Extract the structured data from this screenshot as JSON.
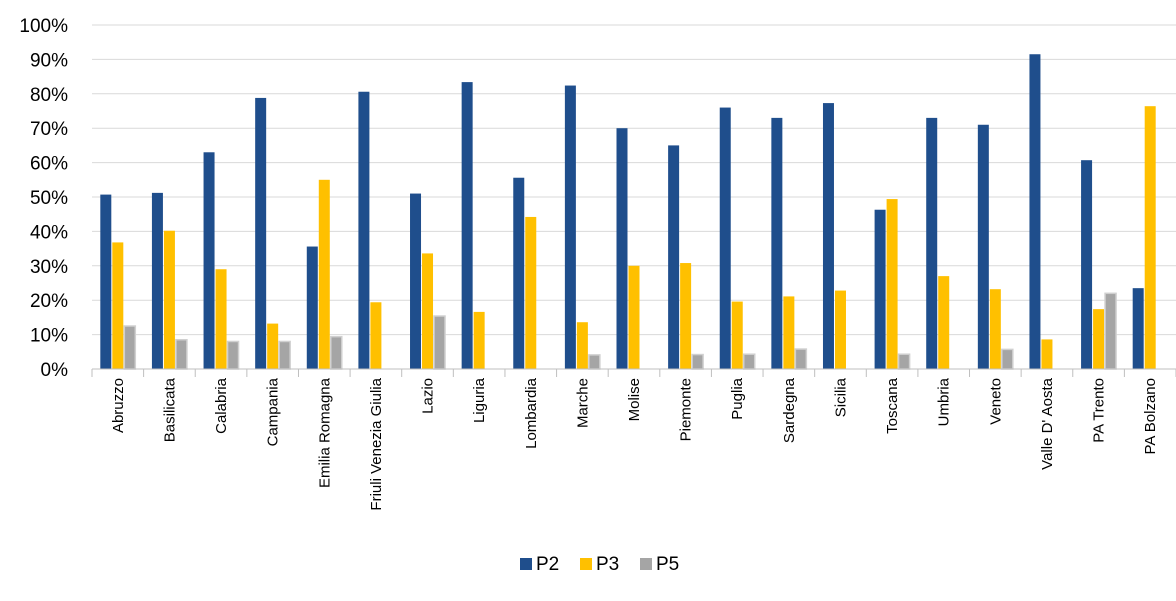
{
  "chart_data": {
    "type": "bar",
    "categories": [
      "Abruzzo",
      "Basilicata",
      "Calabria",
      "Campania",
      "Emilia Romagna",
      "Friuli Venezia Giulia",
      "Lazio",
      "Liguria",
      "Lombardia",
      "Marche",
      "Molise",
      "Piemonte",
      "Puglia",
      "Sardegna",
      "Sicilia",
      "Toscana",
      "Umbria",
      "Veneto",
      "Valle D' Aosta",
      "PA Trento",
      "PA Bolzano"
    ],
    "series": [
      {
        "name": "P2",
        "color": "#1F4E8C",
        "values": [
          50.7,
          51.2,
          63,
          78.8,
          35.6,
          80.6,
          51,
          83.4,
          55.6,
          82.4,
          70,
          65,
          76,
          73,
          77.3,
          46.3,
          73,
          71,
          91.5,
          60.7,
          23.5
        ]
      },
      {
        "name": "P3",
        "color": "#FFC000",
        "values": [
          36.8,
          40.2,
          29,
          13.2,
          55,
          19.4,
          33.6,
          16.6,
          44.2,
          13.6,
          30,
          30.8,
          19.6,
          21.1,
          22.8,
          49.4,
          27,
          23.2,
          8.6,
          17.4,
          76.4
        ]
      },
      {
        "name": "P5",
        "color": "#A5A5A5",
        "values": [
          12.5,
          8.5,
          8,
          8,
          9.4,
          null,
          15.4,
          null,
          null,
          4.1,
          null,
          4.2,
          4.3,
          5.8,
          null,
          4.3,
          null,
          5.7,
          null,
          22,
          null
        ]
      }
    ],
    "y_ticks": [
      "0%",
      "10%",
      "20%",
      "30%",
      "40%",
      "50%",
      "60%",
      "70%",
      "80%",
      "90%",
      "100%"
    ],
    "ylim": [
      0,
      100
    ],
    "grid": true,
    "legend_position": "bottom"
  }
}
